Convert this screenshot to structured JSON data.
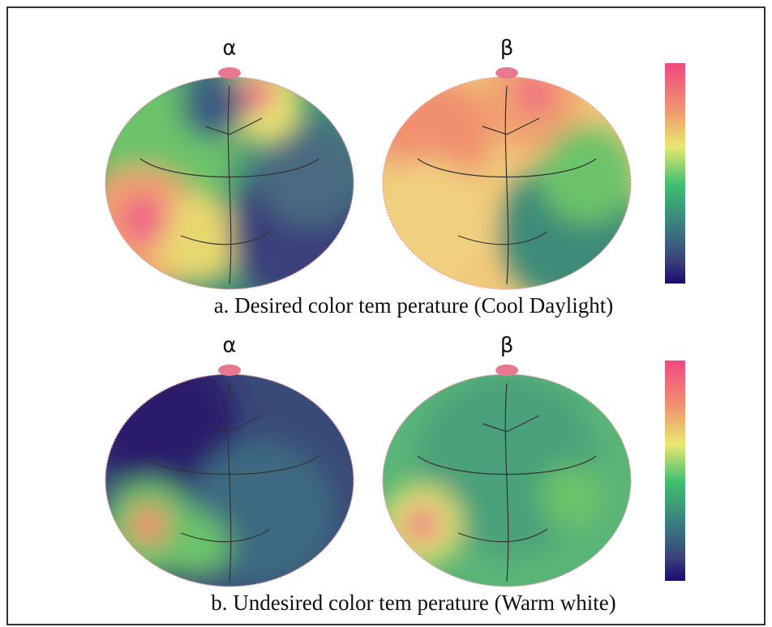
{
  "panels": [
    {
      "maps": [
        {
          "label": "α"
        },
        {
          "label": "β"
        }
      ],
      "caption": "a. Desired color tem perature (Cool Daylight)"
    },
    {
      "maps": [
        {
          "label": "α"
        },
        {
          "label": "β"
        }
      ],
      "caption": "b. Undesired color tem perature (Warm white)"
    }
  ]
}
